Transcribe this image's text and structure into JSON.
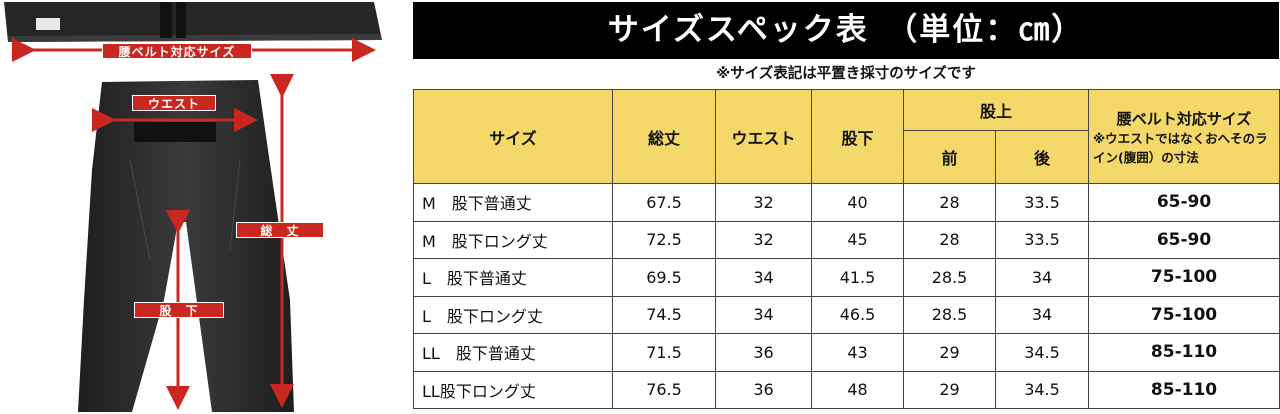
{
  "illustration": {
    "belt_label": "腰ベルト対応サイズ",
    "waist_label": "ウエスト",
    "length_label": "総　丈",
    "inseam_label": "股　下"
  },
  "header": {
    "title": "サイズスペック表　（単位：㎝）",
    "note": "※サイズ表記は平置き採寸のサイズです"
  },
  "table": {
    "col_size": "サイズ",
    "col_total": "総丈",
    "col_waist": "ウエスト",
    "col_inseam": "股下",
    "col_rise": "股上",
    "col_rise_front": "前",
    "col_rise_back": "後",
    "col_belt": "腰ベルト対応サイズ",
    "col_belt_note": "※ウエストではなくおへそのライン(腹囲）の寸法",
    "rows": [
      {
        "size": "M　股下普通丈",
        "total": "67.5",
        "waist": "32",
        "inseam": "40",
        "front": "28",
        "back": "33.5",
        "belt": "65-90"
      },
      {
        "size": "M　股下ロング丈",
        "total": "72.5",
        "waist": "32",
        "inseam": "45",
        "front": "28",
        "back": "33.5",
        "belt": "65-90"
      },
      {
        "size": "L　股下普通丈",
        "total": "69.5",
        "waist": "34",
        "inseam": "41.5",
        "front": "28.5",
        "back": "34",
        "belt": "75-100"
      },
      {
        "size": "L　股下ロング丈",
        "total": "74.5",
        "waist": "34",
        "inseam": "46.5",
        "front": "28.5",
        "back": "34",
        "belt": "75-100"
      },
      {
        "size": "LL　股下普通丈",
        "total": "71.5",
        "waist": "36",
        "inseam": "43",
        "front": "29",
        "back": "34.5",
        "belt": "85-110"
      },
      {
        "size": "LL股下ロング丈",
        "total": "76.5",
        "waist": "36",
        "inseam": "48",
        "front": "29",
        "back": "34.5",
        "belt": "85-110"
      }
    ]
  },
  "colors": {
    "header_bg": "#000000",
    "table_header_bg": "#f5d86a",
    "label_red": "#c9271f",
    "garment": "#2e2e2e"
  }
}
